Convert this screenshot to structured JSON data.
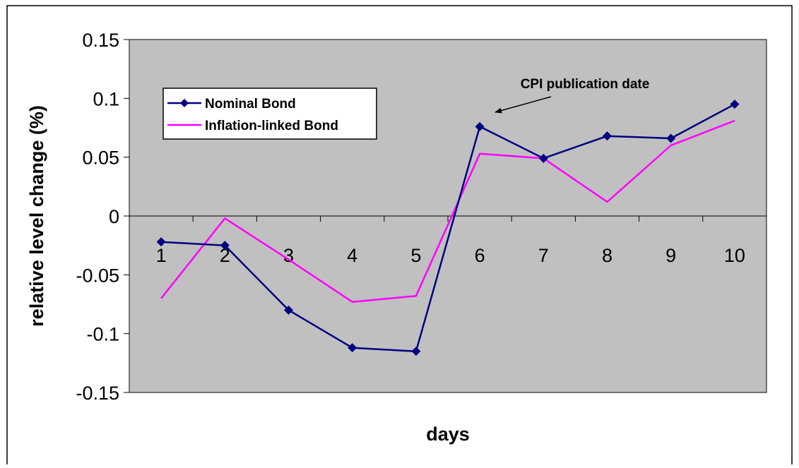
{
  "chart_data": {
    "type": "line",
    "title": "",
    "xlabel": "days",
    "ylabel": "relative level change (%)",
    "x": [
      1,
      2,
      3,
      4,
      5,
      6,
      7,
      8,
      9,
      10
    ],
    "xticks": [
      "1",
      "2",
      "3",
      "4",
      "5",
      "6",
      "7",
      "8",
      "9",
      "10"
    ],
    "ylim": [
      -0.15,
      0.15
    ],
    "yticks": [
      "0.15",
      "0.1",
      "0.05",
      "0",
      "-0.05",
      "-0.1",
      "-0.15"
    ],
    "grid": false,
    "legend_position": "top-left",
    "plot_background": "#c0c0c0",
    "series": [
      {
        "name": "Nominal Bond",
        "values": [
          -0.022,
          -0.025,
          -0.08,
          -0.112,
          -0.115,
          0.076,
          0.049,
          0.068,
          0.066,
          0.095
        ],
        "color": "#000080",
        "marker": "diamond"
      },
      {
        "name": "Inflation-linked Bond",
        "values": [
          -0.07,
          -0.002,
          -0.037,
          -0.073,
          -0.068,
          0.053,
          0.049,
          0.012,
          0.06,
          0.081
        ],
        "color": "#ff00ff",
        "marker": "none"
      }
    ],
    "annotations": [
      {
        "text": "CPI publication date",
        "points_to_x": 6
      }
    ]
  }
}
